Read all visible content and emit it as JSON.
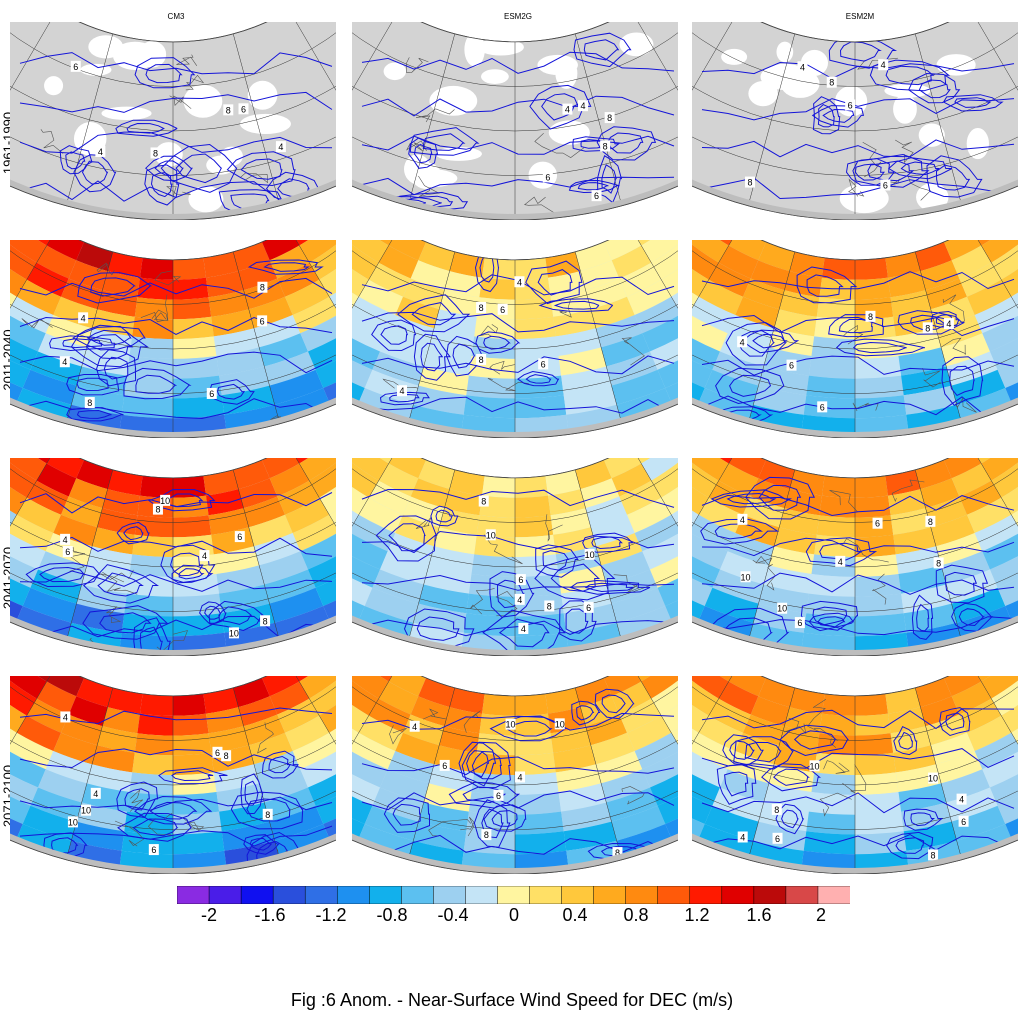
{
  "figure_caption": "Fig :6  Anom.  - Near-Surface Wind Speed for DEC (m/s)",
  "columns": [
    "CM3",
    "ESM2G",
    "ESM2M"
  ],
  "rows": [
    "1961-1990",
    "2011-2040",
    "2041-2070",
    "2071-2100"
  ],
  "contour_labels": {
    "row0": [
      "4",
      "6",
      "8"
    ],
    "row1": [
      "4",
      "6",
      "8"
    ],
    "row2": [
      "4",
      "6",
      "8",
      "10"
    ],
    "row3": [
      "4",
      "6",
      "8",
      "10"
    ]
  },
  "colorbar": {
    "tick_labels": [
      "-2",
      "-1.6",
      "-1.2",
      "-0.8",
      "-0.4",
      "0",
      "0.4",
      "0.8",
      "1.2",
      "1.6",
      "2"
    ],
    "colors": [
      "#8a2be2",
      "#4a1de8",
      "#1010f0",
      "#2a4fdc",
      "#2f6fe6",
      "#1e90f0",
      "#12b0ec",
      "#5cc0f0",
      "#9dd0f0",
      "#c4e4f6",
      "#fff5a0",
      "#ffe066",
      "#ffc83c",
      "#ffaa1e",
      "#ff8a10",
      "#ff5a0a",
      "#ff1a00",
      "#e00000",
      "#bb0a0a",
      "#d84848",
      "#ffb0b0"
    ]
  },
  "panels": [
    {
      "row": 0,
      "col": 0,
      "shading": "none"
    },
    {
      "row": 0,
      "col": 1,
      "shading": "none"
    },
    {
      "row": 0,
      "col": 2,
      "shading": "none"
    },
    {
      "row": 1,
      "col": 0,
      "shading": "strong"
    },
    {
      "row": 1,
      "col": 1,
      "shading": "weak"
    },
    {
      "row": 1,
      "col": 2,
      "shading": "moderate"
    },
    {
      "row": 2,
      "col": 0,
      "shading": "strong"
    },
    {
      "row": 2,
      "col": 1,
      "shading": "weak"
    },
    {
      "row": 2,
      "col": 2,
      "shading": "moderate"
    },
    {
      "row": 3,
      "col": 0,
      "shading": "strong"
    },
    {
      "row": 3,
      "col": 1,
      "shading": "moderate"
    },
    {
      "row": 3,
      "col": 2,
      "shading": "moderate"
    }
  ]
}
